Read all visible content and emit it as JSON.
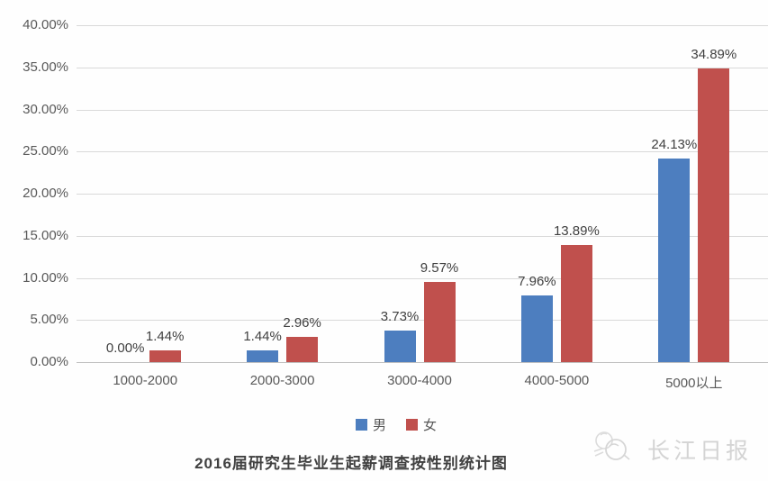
{
  "chart_data": {
    "type": "bar",
    "title": "2016届研究生毕业生起薪调查按性别统计图",
    "categories": [
      "1000-2000",
      "2000-3000",
      "3000-4000",
      "4000-5000",
      "5000以上"
    ],
    "series": [
      {
        "name": "男",
        "color": "#4d7ebf",
        "values": [
          0.0,
          1.44,
          3.73,
          7.96,
          24.13
        ],
        "labels": [
          "0.00%",
          "1.44%",
          "3.73%",
          "7.96%",
          "24.13%"
        ]
      },
      {
        "name": "女",
        "color": "#c0504d",
        "values": [
          1.44,
          2.96,
          9.57,
          13.89,
          34.89
        ],
        "labels": [
          "1.44%",
          "2.96%",
          "9.57%",
          "13.89%",
          "34.89%"
        ]
      }
    ],
    "ylim": [
      0,
      40
    ],
    "ytick_step": 5,
    "ytick_labels": [
      "0.00%",
      "5.00%",
      "10.00%",
      "15.00%",
      "20.00%",
      "25.00%",
      "30.00%",
      "35.00%",
      "40.00%"
    ],
    "grid": true,
    "legend_position": "bottom",
    "gridline_color": "#d9d9d9",
    "axis_text_color": "#595959",
    "data_label_color": "#404040"
  },
  "watermark": {
    "logo": "dove-logo",
    "text": "长江日报",
    "color": "#d4d4d4"
  }
}
